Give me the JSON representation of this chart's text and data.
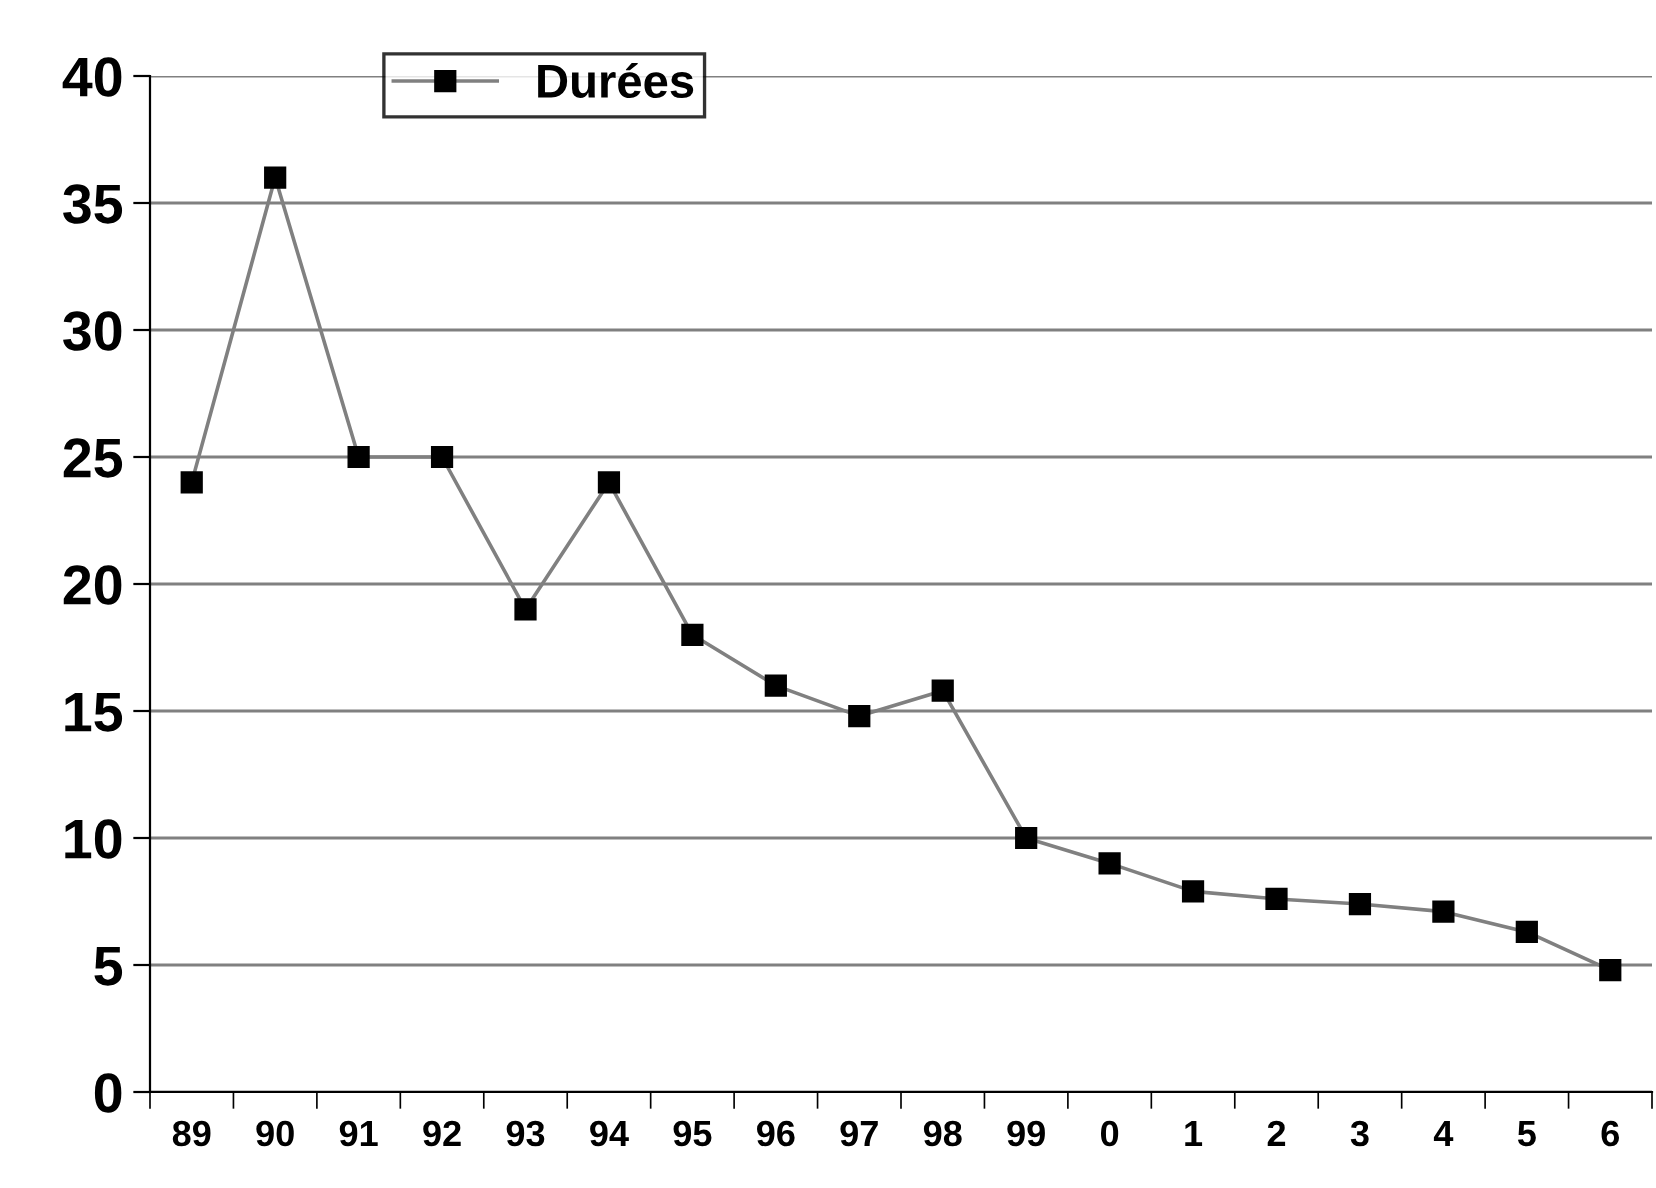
{
  "chart_data": {
    "type": "line",
    "categories": [
      "89",
      "90",
      "91",
      "92",
      "93",
      "94",
      "95",
      "96",
      "97",
      "98",
      "99",
      "0",
      "1",
      "2",
      "3",
      "4",
      "5",
      "6"
    ],
    "series": [
      {
        "name": "Durées",
        "color": "#808080",
        "values": [
          24,
          36,
          25,
          25,
          19,
          24,
          18,
          16,
          14.8,
          15.8,
          10,
          9,
          7.9,
          7.6,
          7.4,
          7.1,
          6.3,
          4.8
        ]
      }
    ],
    "ylim": [
      0,
      40
    ],
    "yticks": [
      0,
      5,
      10,
      15,
      20,
      25,
      30,
      35,
      40
    ],
    "grid": "y",
    "legend": "top left",
    "marker": "square",
    "line_style": "solid"
  }
}
